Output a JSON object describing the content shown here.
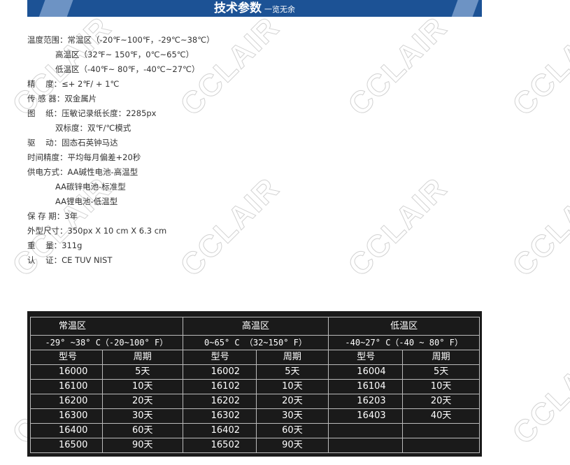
{
  "banner": {
    "title": "技术参数",
    "subtitle": "一览无余"
  },
  "watermark": "CCLAIR",
  "specs": [
    {
      "text": "温度范围：常温区（-20℉~100℉，-29℃~38℃）",
      "indent": false
    },
    {
      "text": "高温区（32℉~ 150℉，0℃~65℃）",
      "indent": true
    },
    {
      "text": "低温区（-40℉~ 80℉，-40℃~27℃）",
      "indent": true
    },
    {
      "text": "精    度：≤+ 2℉/ + 1℃",
      "indent": false
    },
    {
      "text": "传 感 器：双金属片",
      "indent": false
    },
    {
      "text": "图    纸：压敏记录纸长度：2285px",
      "indent": false
    },
    {
      "text": "双标度：双℉/℃模式",
      "indent": true
    },
    {
      "text": "驱    动：固态石英钟马达",
      "indent": false
    },
    {
      "text": "时间精度：平均每月偏差+20秒",
      "indent": false
    },
    {
      "text": "供电方式：AA碱性电池-高温型",
      "indent": false
    },
    {
      "text": "AA碳锌电池-标准型",
      "indent": true
    },
    {
      "text": "AA锂电池-低温型",
      "indent": true
    },
    {
      "text": "保 存 期：3年",
      "indent": false
    },
    {
      "text": "外型尺寸：350px X 10 cm X 6.3 cm",
      "indent": false
    },
    {
      "text": "重    量：311g",
      "indent": false
    },
    {
      "text": "认    证：CE TUV NIST",
      "indent": false
    }
  ],
  "table": {
    "zones": [
      {
        "name": "常温区",
        "range": "-29° ~38° C（-20~100° F）"
      },
      {
        "name": "高温区",
        "range": "0~65° C （32~150° F）"
      },
      {
        "name": "低温区",
        "range": "-40~27° C（-40 ~ 80° F）"
      }
    ],
    "col_model": "型号",
    "col_period": "周期",
    "rows": [
      [
        "16000",
        "5天",
        "16002",
        "5天",
        "16004",
        "5天"
      ],
      [
        "16100",
        "10天",
        "16102",
        "10天",
        "16104",
        "10天"
      ],
      [
        "16200",
        "20天",
        "16202",
        "20天",
        "16203",
        "20天"
      ],
      [
        "16300",
        "30天",
        "16302",
        "30天",
        "16403",
        "40天"
      ],
      [
        "16400",
        "60天",
        "16402",
        "60天",
        "",
        ""
      ],
      [
        "16500",
        "90天",
        "16502",
        "90天",
        "",
        ""
      ]
    ]
  }
}
